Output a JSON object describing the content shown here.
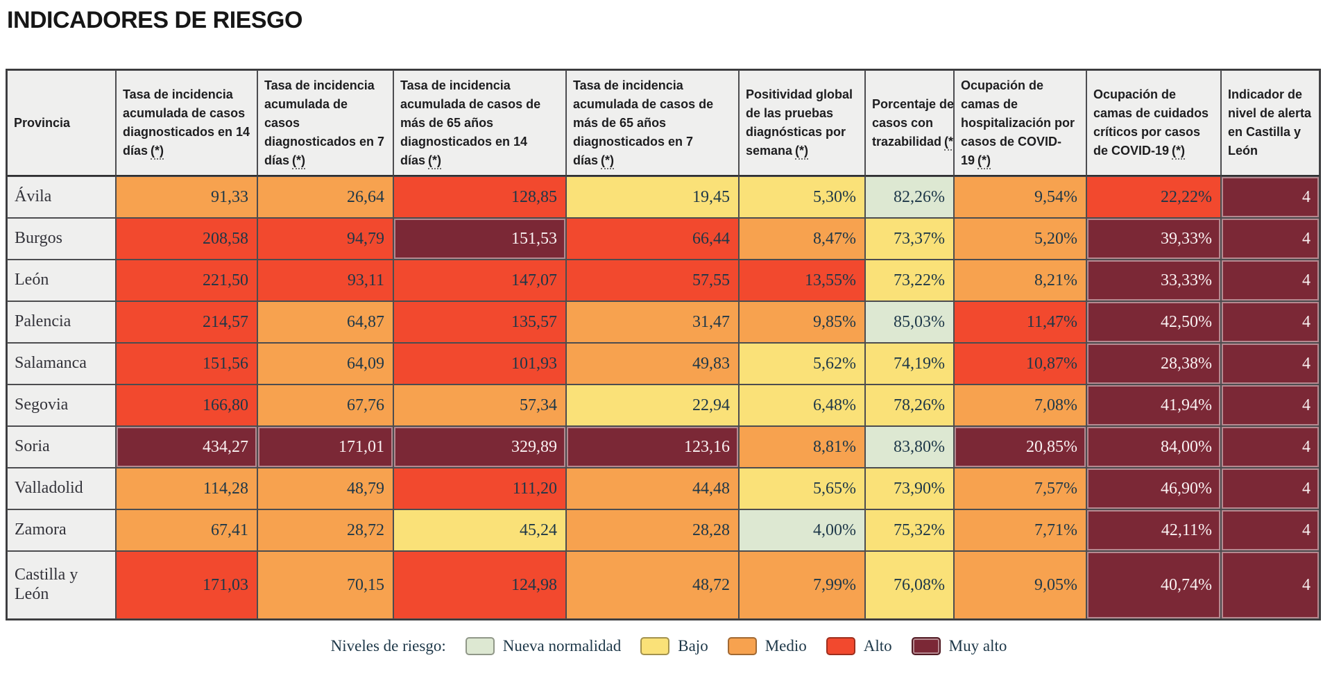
{
  "title": "INDICADORES DE RIESGO",
  "colors": {
    "nueva-normalidad": "#dde8d2",
    "bajo": "#fae178",
    "medio": "#f7a24f",
    "alto": "#f2492e",
    "muy-alto": "#7b2836"
  },
  "chart_data": {
    "type": "table",
    "title": "INDICADORES DE RIESGO",
    "columns": [
      {
        "label": "Provincia",
        "footnote": ""
      },
      {
        "label": "Tasa de incidencia acumulada de casos diagnosticados en 14 días",
        "footnote": "(*)"
      },
      {
        "label": "Tasa de incidencia acumulada de casos diagnosticados en 7 días",
        "footnote": "(*)"
      },
      {
        "label": "Tasa de incidencia acumulada de casos de más de 65 años diagnosticados en 14 días",
        "footnote": "(*)"
      },
      {
        "label": "Tasa de incidencia acumulada de casos de más de 65 años diagnosticados en 7 días",
        "footnote": "(*)"
      },
      {
        "label": "Positividad global de las pruebas diagnósticas por semana",
        "footnote": "(*)"
      },
      {
        "label": "Porcentaje de casos con trazabilidad",
        "footnote": "(*)"
      },
      {
        "label": "Ocupación de camas de hospitalización por casos de COVID-19",
        "footnote": "(*)"
      },
      {
        "label": "Ocupación de camas de cuidados críticos por casos de COVID-19",
        "footnote": "(*)"
      },
      {
        "label": "Indicador de nivel de alerta en Castilla y León",
        "footnote": ""
      }
    ],
    "rows": [
      {
        "province": "Ávila",
        "values": [
          "91,33",
          "26,64",
          "128,85",
          "19,45",
          "5,30%",
          "82,26%",
          "9,54%",
          "22,22%",
          "4"
        ],
        "levels": [
          "medio",
          "medio",
          "alto",
          "bajo",
          "bajo",
          "nueva-normalidad",
          "medio",
          "alto",
          "muy-alto"
        ]
      },
      {
        "province": "Burgos",
        "values": [
          "208,58",
          "94,79",
          "151,53",
          "66,44",
          "8,47%",
          "73,37%",
          "5,20%",
          "39,33%",
          "4"
        ],
        "levels": [
          "alto",
          "alto",
          "muy-alto",
          "alto",
          "medio",
          "bajo",
          "medio",
          "muy-alto",
          "muy-alto"
        ]
      },
      {
        "province": "León",
        "values": [
          "221,50",
          "93,11",
          "147,07",
          "57,55",
          "13,55%",
          "73,22%",
          "8,21%",
          "33,33%",
          "4"
        ],
        "levels": [
          "alto",
          "alto",
          "alto",
          "alto",
          "alto",
          "bajo",
          "medio",
          "muy-alto",
          "muy-alto"
        ]
      },
      {
        "province": "Palencia",
        "values": [
          "214,57",
          "64,87",
          "135,57",
          "31,47",
          "9,85%",
          "85,03%",
          "11,47%",
          "42,50%",
          "4"
        ],
        "levels": [
          "alto",
          "medio",
          "alto",
          "medio",
          "medio",
          "nueva-normalidad",
          "alto",
          "muy-alto",
          "muy-alto"
        ]
      },
      {
        "province": "Salamanca",
        "values": [
          "151,56",
          "64,09",
          "101,93",
          "49,83",
          "5,62%",
          "74,19%",
          "10,87%",
          "28,38%",
          "4"
        ],
        "levels": [
          "alto",
          "medio",
          "alto",
          "medio",
          "bajo",
          "bajo",
          "alto",
          "muy-alto",
          "muy-alto"
        ]
      },
      {
        "province": "Segovia",
        "values": [
          "166,80",
          "67,76",
          "57,34",
          "22,94",
          "6,48%",
          "78,26%",
          "7,08%",
          "41,94%",
          "4"
        ],
        "levels": [
          "alto",
          "medio",
          "medio",
          "bajo",
          "bajo",
          "bajo",
          "medio",
          "muy-alto",
          "muy-alto"
        ]
      },
      {
        "province": "Soria",
        "values": [
          "434,27",
          "171,01",
          "329,89",
          "123,16",
          "8,81%",
          "83,80%",
          "20,85%",
          "84,00%",
          "4"
        ],
        "levels": [
          "muy-alto",
          "muy-alto",
          "muy-alto",
          "muy-alto",
          "medio",
          "nueva-normalidad",
          "muy-alto",
          "muy-alto",
          "muy-alto"
        ]
      },
      {
        "province": "Valladolid",
        "values": [
          "114,28",
          "48,79",
          "111,20",
          "44,48",
          "5,65%",
          "73,90%",
          "7,57%",
          "46,90%",
          "4"
        ],
        "levels": [
          "medio",
          "medio",
          "alto",
          "medio",
          "bajo",
          "bajo",
          "medio",
          "muy-alto",
          "muy-alto"
        ]
      },
      {
        "province": "Zamora",
        "values": [
          "67,41",
          "28,72",
          "45,24",
          "28,28",
          "4,00%",
          "75,32%",
          "7,71%",
          "42,11%",
          "4"
        ],
        "levels": [
          "medio",
          "medio",
          "bajo",
          "medio",
          "nueva-normalidad",
          "bajo",
          "medio",
          "muy-alto",
          "muy-alto"
        ]
      },
      {
        "province": "Castilla y León",
        "values": [
          "171,03",
          "70,15",
          "124,98",
          "48,72",
          "7,99%",
          "76,08%",
          "9,05%",
          "40,74%",
          "4"
        ],
        "levels": [
          "alto",
          "medio",
          "alto",
          "medio",
          "medio",
          "bajo",
          "medio",
          "muy-alto",
          "muy-alto"
        ]
      }
    ],
    "legend": {
      "label": "Niveles de riesgo:",
      "items": [
        {
          "label": "Nueva normalidad",
          "level": "nueva-normalidad"
        },
        {
          "label": "Bajo",
          "level": "bajo"
        },
        {
          "label": "Medio",
          "level": "medio"
        },
        {
          "label": "Alto",
          "level": "alto"
        },
        {
          "label": "Muy alto",
          "level": "muy-alto"
        }
      ]
    }
  }
}
